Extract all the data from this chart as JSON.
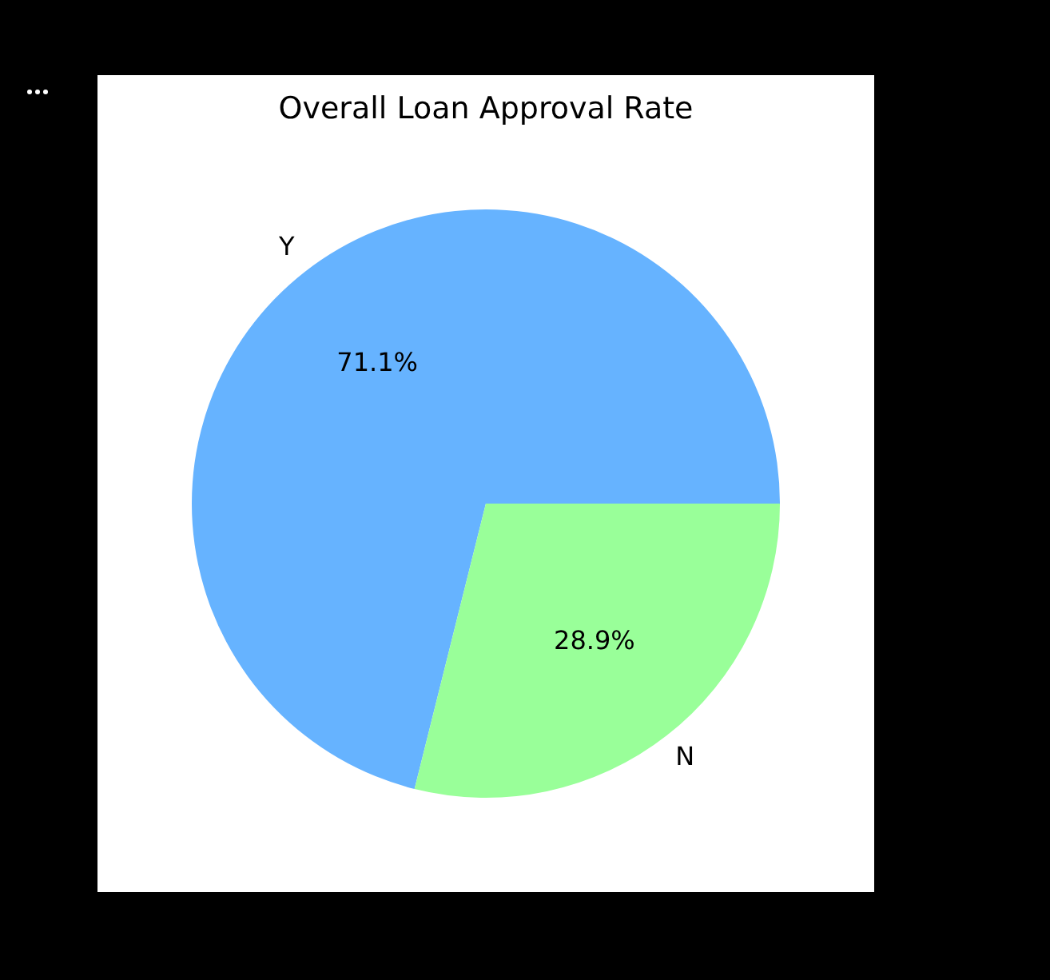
{
  "chart_data": {
    "type": "pie",
    "title": "Overall Loan Approval Rate",
    "categories": [
      "Y",
      "N"
    ],
    "values": [
      71.1,
      28.9
    ],
    "colors": [
      "#66b3ff",
      "#99ff99"
    ],
    "value_labels": [
      "71.1%",
      "28.9%"
    ]
  }
}
